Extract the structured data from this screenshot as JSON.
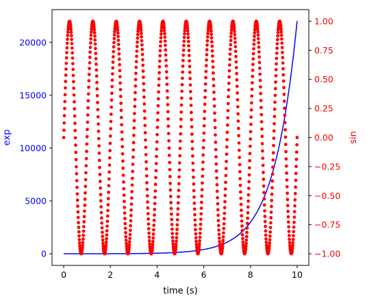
{
  "chart_data": {
    "type": "line",
    "title": "",
    "xlabel": "time (s)",
    "xlim": [
      -0.5,
      10.5
    ],
    "xticks": [
      0,
      2,
      4,
      6,
      8,
      10
    ],
    "grid": false,
    "axes": {
      "left": {
        "label": "exp",
        "color": "#0000ff",
        "ylim": [
          -1100,
          23100
        ],
        "ticks": [
          0,
          5000,
          10000,
          15000,
          20000
        ]
      },
      "right": {
        "label": "sin",
        "color": "#ff0000",
        "ylim": [
          -1.1,
          1.1
        ],
        "ticks": [
          -1.0,
          -0.75,
          -0.5,
          -0.25,
          0.0,
          0.25,
          0.5,
          0.75,
          1.0
        ],
        "tick_labels": [
          "−1.00",
          "−0.75",
          "−0.50",
          "−0.25",
          "0.00",
          "0.25",
          "0.50",
          "0.75",
          "1.00"
        ]
      }
    },
    "series": [
      {
        "axis": "left",
        "style": "line",
        "color": "#0000ff",
        "x": [
          0,
          1,
          2,
          3,
          4,
          5,
          6,
          6.5,
          7,
          7.5,
          8,
          8.5,
          9,
          9.25,
          9.5,
          9.75,
          10
        ],
        "y": [
          1,
          3,
          7,
          20,
          55,
          148,
          403,
          665,
          1097,
          1808,
          2981,
          4915,
          8103,
          10405,
          13360,
          17154,
          22026
        ]
      },
      {
        "axis": "right",
        "style": "scatter",
        "color": "#ff0000",
        "function": "sin(2*pi*t)",
        "x_range": [
          0,
          10
        ],
        "n_points": 1000
      }
    ]
  }
}
